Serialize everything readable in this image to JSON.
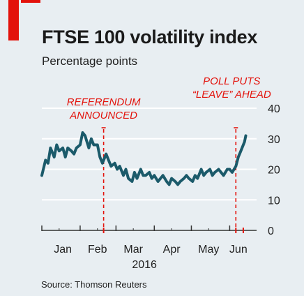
{
  "header": {
    "title": "FTSE 100 volatility index",
    "subtitle": "Percentage points"
  },
  "footer": {
    "source": "Source: Thomson Reuters"
  },
  "colors": {
    "brand_red": "#e3120b",
    "line": "#1b5a6a",
    "grid": "#ffffff",
    "background": "#e8eef2",
    "marker": "#e3120b"
  },
  "chart_data": {
    "type": "line",
    "title": "FTSE 100 volatility index",
    "subtitle": "Percentage points",
    "xlabel": "",
    "ylabel": "",
    "ylim": [
      0,
      40
    ],
    "yticks": [
      "0",
      "10",
      "20",
      "30",
      "40"
    ],
    "y_axis_position": "right",
    "grid": true,
    "x_tick_labels": [
      "Jan",
      "Feb",
      "Mar",
      "Apr",
      "May",
      "Jun"
    ],
    "x_year_label": "2016",
    "series": [
      {
        "x": [
          "2016-01-01",
          "2016-01-04",
          "2016-01-06",
          "2016-01-08",
          "2016-01-11",
          "2016-01-13",
          "2016-01-15",
          "2016-01-18",
          "2016-01-20",
          "2016-01-22",
          "2016-01-25",
          "2016-01-27",
          "2016-01-29",
          "2016-02-01",
          "2016-02-03",
          "2016-02-05",
          "2016-02-08",
          "2016-02-10",
          "2016-02-12",
          "2016-02-15",
          "2016-02-17",
          "2016-02-19",
          "2016-02-22",
          "2016-02-24",
          "2016-02-26",
          "2016-02-29",
          "2016-03-02",
          "2016-03-04",
          "2016-03-07",
          "2016-03-09",
          "2016-03-11",
          "2016-03-14",
          "2016-03-16",
          "2016-03-18",
          "2016-03-21",
          "2016-03-23",
          "2016-03-25",
          "2016-03-28",
          "2016-03-30",
          "2016-04-01",
          "2016-04-04",
          "2016-04-06",
          "2016-04-08",
          "2016-04-11",
          "2016-04-13",
          "2016-04-15",
          "2016-04-18",
          "2016-04-20",
          "2016-04-22",
          "2016-04-25",
          "2016-04-27",
          "2016-04-29",
          "2016-05-02",
          "2016-05-04",
          "2016-05-06",
          "2016-05-09",
          "2016-05-11",
          "2016-05-13",
          "2016-05-16",
          "2016-05-18",
          "2016-05-20",
          "2016-05-23",
          "2016-05-25",
          "2016-05-27",
          "2016-05-30",
          "2016-06-01",
          "2016-06-03",
          "2016-06-06",
          "2016-06-08",
          "2016-06-10",
          "2016-06-13",
          "2016-06-14"
        ],
        "values": [
          18,
          23,
          22,
          27,
          24,
          28,
          26,
          27,
          24,
          27,
          26,
          25,
          27,
          28,
          32,
          31,
          27,
          30,
          28,
          28,
          24,
          22,
          25,
          23,
          21,
          22,
          20,
          21,
          18,
          20,
          17,
          16,
          19,
          17,
          20,
          18,
          18,
          19,
          17,
          18,
          16,
          17,
          18,
          16,
          15,
          17,
          16,
          15,
          16,
          17,
          18,
          17,
          16,
          18,
          17,
          20,
          18,
          19,
          20,
          18,
          19,
          20,
          19,
          18,
          20,
          20,
          19,
          21,
          24,
          26,
          29,
          31
        ]
      }
    ],
    "annotations": [
      {
        "label": [
          "REFERENDUM",
          "ANNOUNCED"
        ],
        "x": "2016-02-20",
        "style": "dashed vertical line"
      },
      {
        "label": [
          "POLL PUTS",
          "“LEAVE” AHEAD"
        ],
        "x": "2016-06-06",
        "style": "dashed vertical line"
      }
    ],
    "marker_x": [
      "2016-02-20",
      "2016-06-06",
      "2016-06-12"
    ]
  }
}
